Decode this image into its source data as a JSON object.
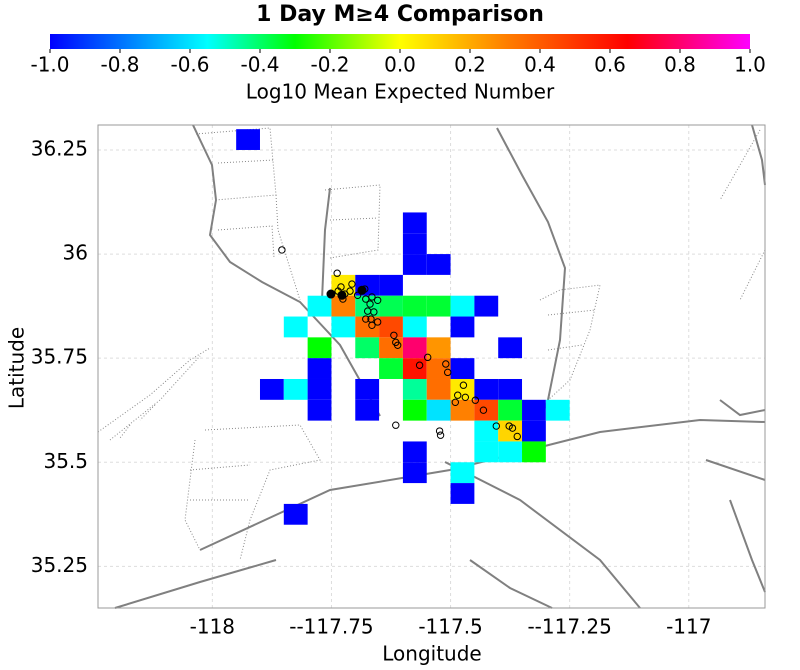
{
  "chart_data": {
    "type": "heatmap",
    "title": "1 Day M≥4 Comparison",
    "colorbar": {
      "label": "Log10 Mean Expected Number",
      "lim": [
        -1,
        1
      ],
      "ticks": [
        {
          "value": -1,
          "label": "-1.0"
        },
        -0.8,
        -0.6,
        -0.4,
        -0.2,
        {
          "value": 0,
          "label": "0.0"
        },
        0.2,
        0.4,
        0.6,
        0.8,
        {
          "value": 1,
          "label": "1.0"
        }
      ],
      "colorscale": [
        [
          -1,
          "#0000ff"
        ],
        [
          -0.55,
          "#00ffff"
        ],
        [
          -0.3,
          "#00ff00"
        ],
        [
          0,
          "#ffff00"
        ],
        [
          0.3,
          "#ff8000"
        ],
        [
          0.65,
          "#ff0000"
        ],
        [
          1,
          "#ff00ff"
        ]
      ]
    },
    "xlabel": "Longitude",
    "ylabel": "Latitude",
    "xlim": [
      -118.24,
      -116.84
    ],
    "ylim": [
      35.15,
      36.31
    ],
    "xticks": [
      -118,
      {
        "value": -117.75,
        "label": "--117.75"
      },
      -117.5,
      {
        "value": -117.25,
        "label": "--117.25"
      },
      -117
    ],
    "yticks": [
      36.25,
      36,
      35.75,
      35.5,
      35.25
    ],
    "grid": true,
    "cell_size": 0.05,
    "cells": {
      "x": [
        -117.95,
        -117.6,
        -117.6,
        -117.6,
        -117.55,
        -117.75,
        -117.7,
        -117.65,
        -117.8,
        -117.75,
        -117.7,
        -117.65,
        -117.6,
        -117.55,
        -117.5,
        -117.45,
        -117.85,
        -117.75,
        -117.7,
        -117.65,
        -117.6,
        -117.5,
        -117.8,
        -117.7,
        -117.65,
        -117.6,
        -117.55,
        -117.4,
        -117.8,
        -117.65,
        -117.6,
        -117.55,
        -117.5,
        -117.9,
        -117.85,
        -117.8,
        -117.7,
        -117.6,
        -117.55,
        -117.5,
        -117.45,
        -117.4,
        -117.8,
        -117.7,
        -117.6,
        -117.55,
        -117.5,
        -117.45,
        -117.4,
        -117.35,
        -117.3,
        -117.45,
        -117.4,
        -117.35,
        -117.6,
        -117.45,
        -117.4,
        -117.35,
        -117.6,
        -117.5,
        -117.5,
        -117.85
      ],
      "y": [
        36.25,
        36.05,
        36.0,
        35.95,
        35.95,
        35.9,
        35.9,
        35.9,
        35.85,
        35.85,
        35.85,
        35.85,
        35.85,
        35.85,
        35.85,
        35.85,
        35.8,
        35.8,
        35.8,
        35.8,
        35.8,
        35.8,
        35.75,
        35.75,
        35.75,
        35.75,
        35.75,
        35.75,
        35.7,
        35.7,
        35.7,
        35.7,
        35.7,
        35.65,
        35.65,
        35.65,
        35.65,
        35.65,
        35.65,
        35.65,
        35.65,
        35.65,
        35.6,
        35.6,
        35.6,
        35.6,
        35.6,
        35.6,
        35.6,
        35.6,
        35.6,
        35.55,
        35.55,
        35.55,
        35.5,
        35.5,
        35.5,
        35.5,
        35.45,
        35.45,
        35.4,
        35.35
      ],
      "values": [
        -1,
        -1,
        -1,
        -1,
        -1,
        0.05,
        -1,
        -1,
        -0.55,
        0.3,
        -0.42,
        -0.38,
        -0.35,
        -0.35,
        -0.55,
        -1,
        -0.55,
        -0.55,
        0.35,
        0.45,
        -0.55,
        -1,
        -0.3,
        -0.4,
        0.35,
        0.8,
        0.25,
        -1,
        -1,
        -0.35,
        0.6,
        0.35,
        -1,
        -1,
        -0.55,
        -1,
        -1,
        -0.45,
        0.35,
        0.05,
        -1,
        -1,
        -1,
        -1,
        -0.3,
        -0.6,
        0.3,
        0.45,
        -0.35,
        -1,
        -0.55,
        -0.55,
        0.1,
        -1,
        -1,
        -0.55,
        -0.55,
        -0.3,
        -1,
        -0.55,
        -1,
        -1
      ]
    },
    "points": {
      "x": [
        -117.854,
        -117.738,
        -117.73,
        -117.736,
        -117.722,
        -117.726,
        -117.711,
        -117.707,
        -117.695,
        -117.68,
        -117.678,
        -117.665,
        -117.653,
        -117.669,
        -117.674,
        -117.661,
        -117.667,
        -117.678,
        -117.665,
        -117.653,
        -117.619,
        -117.615,
        -117.611,
        -117.548,
        -117.565,
        -117.51,
        -117.506,
        -117.473,
        -117.485,
        -117.469,
        -117.49,
        -117.448,
        -117.431,
        -117.615,
        -117.523,
        -117.521,
        -117.404,
        -117.377,
        -117.37,
        -117.36
      ],
      "y": [
        36.01,
        35.954,
        35.921,
        35.911,
        35.904,
        35.892,
        35.911,
        35.928,
        35.901,
        35.916,
        35.892,
        35.897,
        35.889,
        35.88,
        35.863,
        35.861,
        35.844,
        35.844,
        35.829,
        35.837,
        35.805,
        35.788,
        35.781,
        35.752,
        35.733,
        35.736,
        35.716,
        35.685,
        35.661,
        35.656,
        35.644,
        35.649,
        35.625,
        35.589,
        35.575,
        35.565,
        35.587,
        35.587,
        35.582,
        35.562
      ]
    },
    "large_points": {
      "x": [
        -117.751,
        -117.686,
        -117.728
      ],
      "y": [
        35.904,
        35.913,
        35.901
      ]
    }
  }
}
